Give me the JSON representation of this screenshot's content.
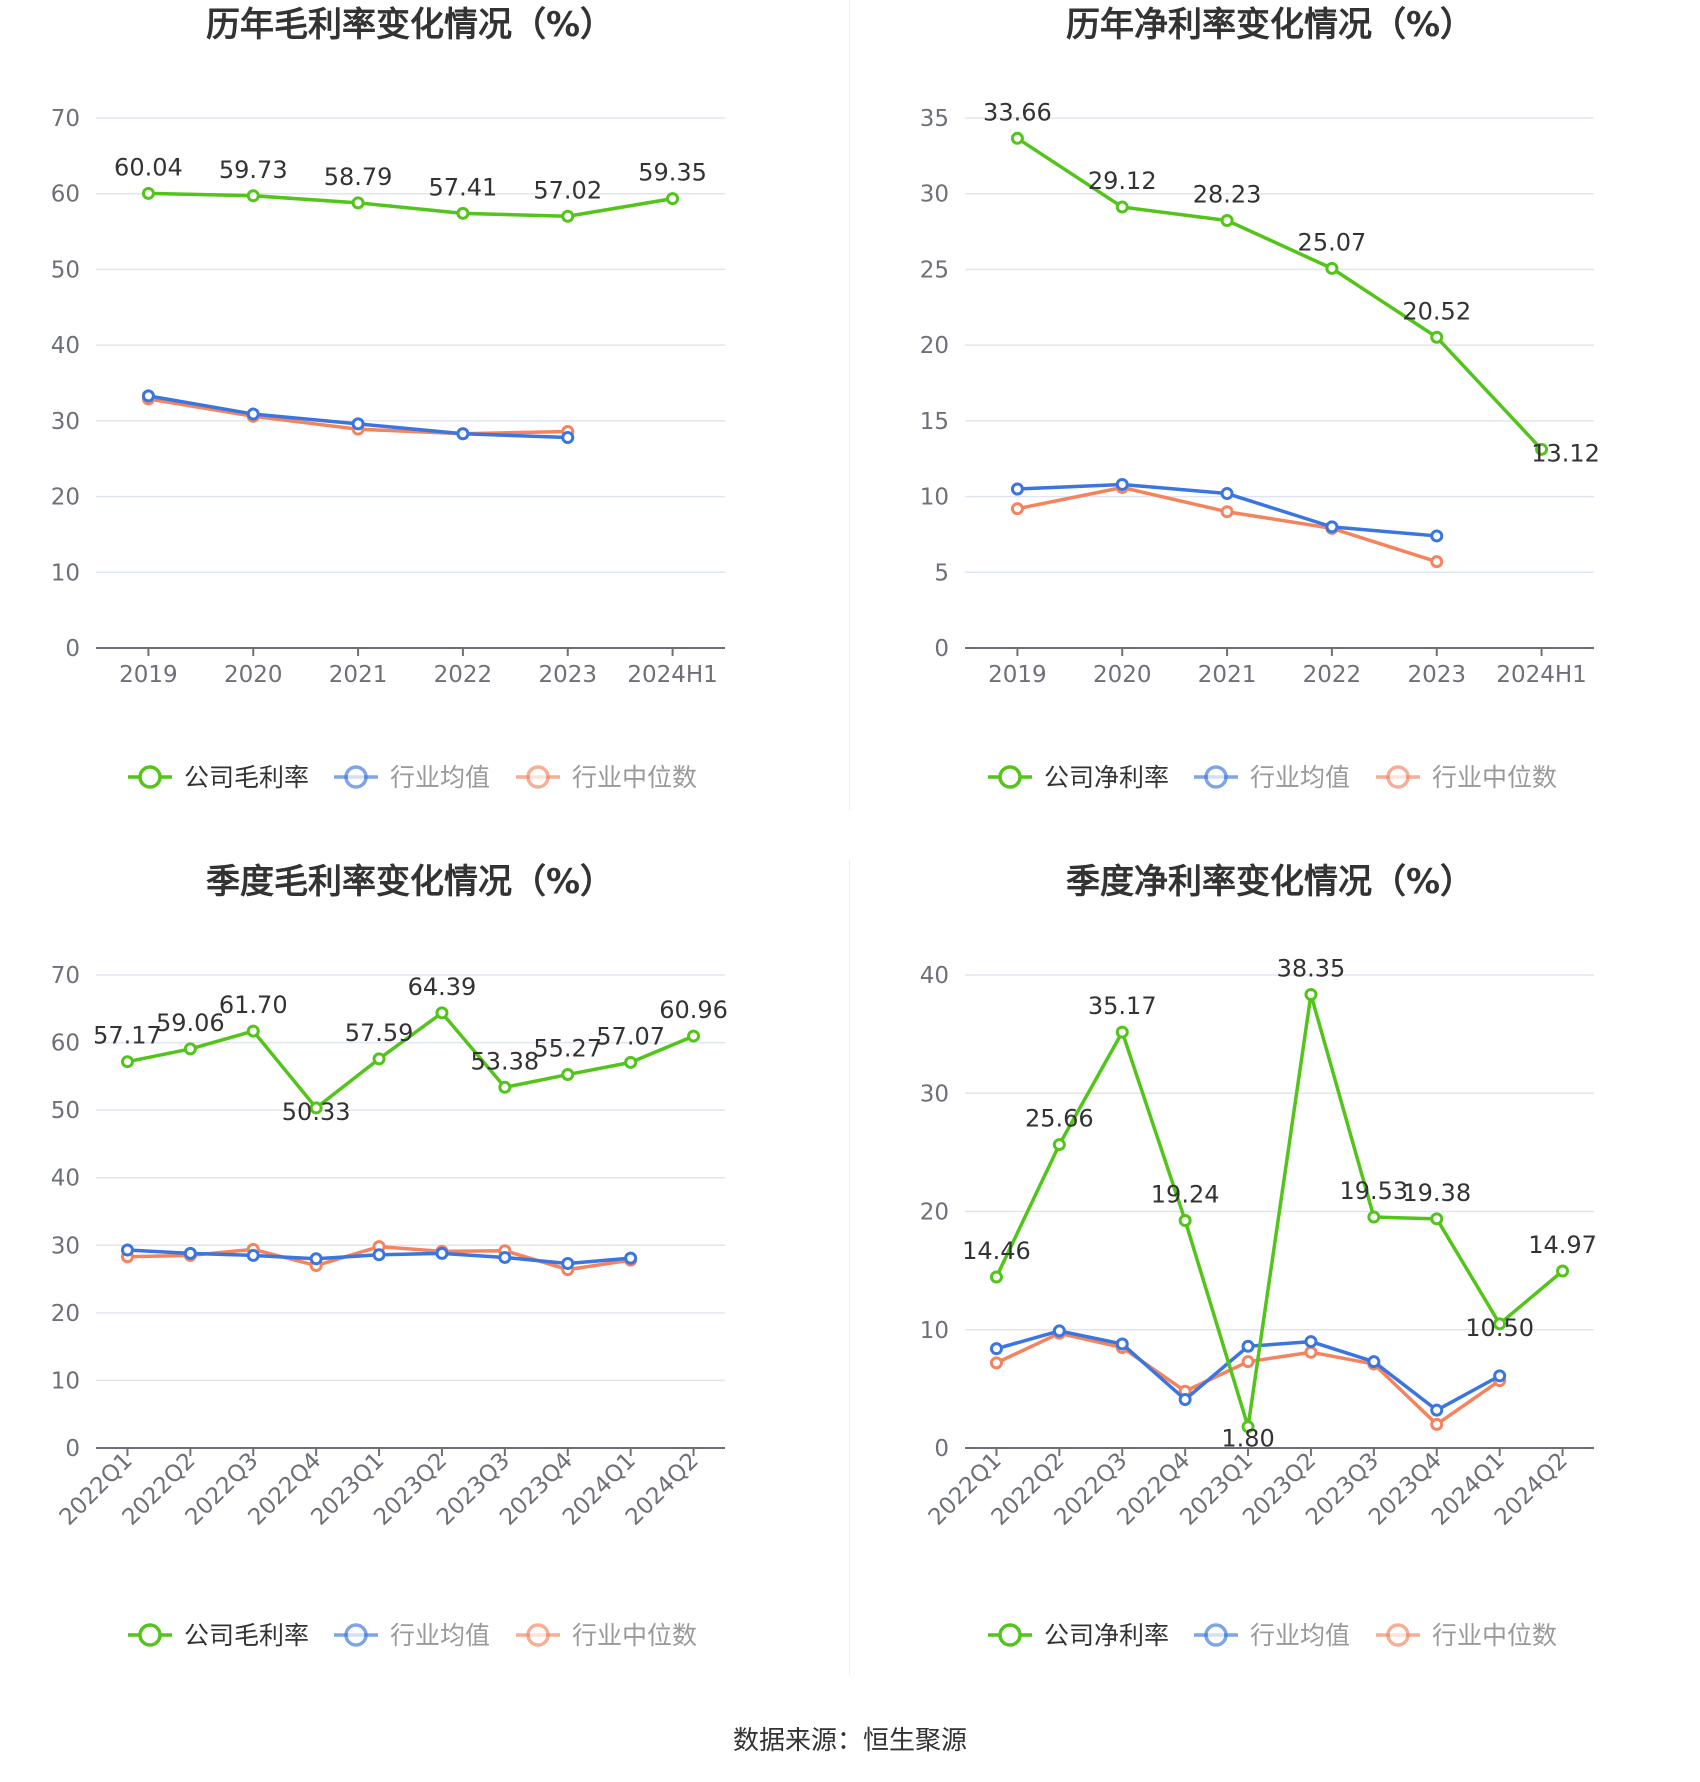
{
  "colors": {
    "company": "#52c41a",
    "avg": "#3a75e0",
    "median": "#f4835e",
    "grid": "#e0e6f1",
    "axis": "#6e7079",
    "text": "#333333"
  },
  "source": "数据来源：恒生聚源",
  "chart_data": [
    {
      "type": "line",
      "title": "历年毛利率变化情况（%）",
      "categories": [
        "2019",
        "2020",
        "2021",
        "2022",
        "2023",
        "2024H1"
      ],
      "ylim": [
        0,
        70
      ],
      "yticks": [
        0,
        10,
        20,
        30,
        40,
        50,
        60,
        70
      ],
      "grid": true,
      "legend_position": "bottom",
      "rotate_labels": false,
      "series": [
        {
          "name": "公司毛利率",
          "color_key": "company",
          "labels": true,
          "values": [
            60.04,
            59.73,
            58.79,
            57.41,
            57.02,
            59.35
          ]
        },
        {
          "name": "行业均值",
          "color_key": "avg",
          "labels": false,
          "values": [
            33.3,
            30.9,
            29.6,
            28.3,
            27.8,
            null
          ]
        },
        {
          "name": "行业中位数",
          "color_key": "median",
          "labels": false,
          "values": [
            32.9,
            30.6,
            28.9,
            28.3,
            28.6,
            null
          ]
        }
      ],
      "value_labels": [
        "60.04",
        "59.73",
        "58.79",
        "57.41",
        "57.02",
        "59.35"
      ]
    },
    {
      "type": "line",
      "title": "历年净利率变化情况（%）",
      "categories": [
        "2019",
        "2020",
        "2021",
        "2022",
        "2023",
        "2024H1"
      ],
      "ylim": [
        0,
        35
      ],
      "yticks": [
        0,
        5,
        10,
        15,
        20,
        25,
        30,
        35
      ],
      "grid": true,
      "legend_position": "bottom",
      "rotate_labels": false,
      "series": [
        {
          "name": "公司净利率",
          "color_key": "company",
          "labels": true,
          "values": [
            33.66,
            29.12,
            28.23,
            25.07,
            20.52,
            13.12
          ]
        },
        {
          "name": "行业均值",
          "color_key": "avg",
          "labels": false,
          "values": [
            10.5,
            10.8,
            10.2,
            8.0,
            7.4,
            null
          ]
        },
        {
          "name": "行业中位数",
          "color_key": "median",
          "labels": false,
          "values": [
            9.2,
            10.6,
            9.0,
            7.9,
            5.7,
            null
          ]
        }
      ],
      "value_labels": [
        "33.66",
        "29.12",
        "28.23",
        "25.07",
        "20.52",
        "13.12"
      ]
    },
    {
      "type": "line",
      "title": "季度毛利率变化情况（%）",
      "categories": [
        "2022Q1",
        "2022Q2",
        "2022Q3",
        "2022Q4",
        "2023Q1",
        "2023Q2",
        "2023Q3",
        "2023Q4",
        "2024Q1",
        "2024Q2"
      ],
      "ylim": [
        0,
        70
      ],
      "yticks": [
        0,
        10,
        20,
        30,
        40,
        50,
        60,
        70
      ],
      "grid": true,
      "legend_position": "bottom",
      "rotate_labels": true,
      "series": [
        {
          "name": "公司毛利率",
          "color_key": "company",
          "labels": true,
          "values": [
            57.17,
            59.06,
            61.7,
            50.33,
            57.59,
            64.39,
            53.38,
            55.27,
            57.07,
            60.96
          ]
        },
        {
          "name": "行业均值",
          "color_key": "avg",
          "labels": false,
          "values": [
            29.3,
            28.8,
            28.5,
            28.0,
            28.6,
            28.8,
            28.2,
            27.3,
            28.1,
            null
          ]
        },
        {
          "name": "行业中位数",
          "color_key": "median",
          "labels": false,
          "values": [
            28.3,
            28.5,
            29.4,
            27.0,
            29.8,
            29.1,
            29.2,
            26.4,
            27.8,
            null
          ]
        }
      ],
      "value_labels": [
        "57.17",
        "59.06",
        "61.70",
        "50.33",
        "57.59",
        "64.39",
        "53.38",
        "55.27",
        "57.07",
        "60.96"
      ]
    },
    {
      "type": "line",
      "title": "季度净利率变化情况（%）",
      "categories": [
        "2022Q1",
        "2022Q2",
        "2022Q3",
        "2022Q4",
        "2023Q1",
        "2023Q2",
        "2023Q3",
        "2023Q4",
        "2024Q1",
        "2024Q2"
      ],
      "ylim": [
        0,
        40
      ],
      "yticks": [
        0,
        10,
        20,
        30,
        40
      ],
      "grid": true,
      "legend_position": "bottom",
      "rotate_labels": true,
      "series": [
        {
          "name": "公司净利率",
          "color_key": "company",
          "labels": true,
          "values": [
            14.46,
            25.66,
            35.17,
            19.24,
            1.8,
            38.35,
            19.53,
            19.38,
            10.5,
            14.97
          ]
        },
        {
          "name": "行业均值",
          "color_key": "avg",
          "labels": false,
          "values": [
            8.4,
            9.9,
            8.8,
            4.1,
            8.6,
            9.0,
            7.3,
            3.2,
            6.1,
            null
          ]
        },
        {
          "name": "行业中位数",
          "color_key": "median",
          "labels": false,
          "values": [
            7.2,
            9.7,
            8.5,
            4.8,
            7.3,
            8.1,
            7.1,
            2.0,
            5.7,
            null
          ]
        }
      ],
      "value_labels": [
        "14.46",
        "25.66",
        "35.17",
        "19.24",
        "1.80",
        "38.35",
        "19.53",
        "19.38",
        "10.50",
        "14.97"
      ]
    }
  ]
}
